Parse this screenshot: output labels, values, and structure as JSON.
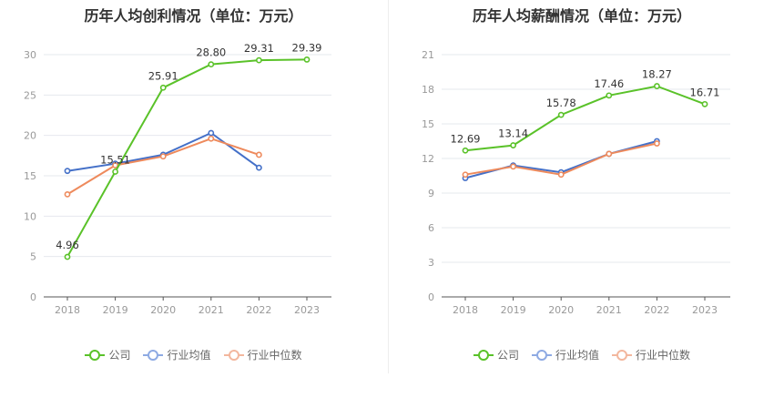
{
  "colors": {
    "company": "#5ac229",
    "industry_avg": "#4470c8",
    "industry_median": "#ee8a5c",
    "legend_industry_avg": "#8eaae3",
    "legend_industry_median": "#f3b79e",
    "grid": "#e6e8ee",
    "axis": "#555555"
  },
  "charts": [
    {
      "title": "历年人均创利情况（单位：万元）",
      "legend": [
        "公司",
        "行业均值",
        "行业中位数"
      ]
    },
    {
      "title": "历年人均薪酬情况（单位：万元）",
      "legend": [
        "公司",
        "行业均值",
        "行业中位数"
      ]
    }
  ],
  "chart_data": [
    {
      "type": "line",
      "title": "历年人均创利情况（单位：万元）",
      "categories": [
        "2018",
        "2019",
        "2020",
        "2021",
        "2022",
        "2023"
      ],
      "ylim": [
        0,
        30
      ],
      "yticks": [
        0,
        5,
        10,
        15,
        20,
        25,
        30
      ],
      "grid": true,
      "legend_position": "bottom",
      "series": [
        {
          "name": "公司",
          "values": [
            4.96,
            15.51,
            25.91,
            28.8,
            29.31,
            29.39
          ],
          "labels": [
            "4.96",
            "15.51",
            "25.91",
            "28.80",
            "29.31",
            "29.39"
          ]
        },
        {
          "name": "行业均值",
          "values": [
            15.6,
            16.5,
            17.6,
            20.3,
            16.0,
            null
          ]
        },
        {
          "name": "行业中位数",
          "values": [
            12.7,
            16.3,
            17.4,
            19.6,
            17.6,
            null
          ]
        }
      ]
    },
    {
      "type": "line",
      "title": "历年人均薪酬情况（单位：万元）",
      "categories": [
        "2018",
        "2019",
        "2020",
        "2021",
        "2022",
        "2023"
      ],
      "ylim": [
        0,
        21
      ],
      "yticks": [
        0,
        3,
        6,
        9,
        12,
        15,
        18,
        21
      ],
      "grid": true,
      "legend_position": "bottom",
      "series": [
        {
          "name": "公司",
          "values": [
            12.69,
            13.14,
            15.78,
            17.46,
            18.27,
            16.71
          ],
          "labels": [
            "12.69",
            "13.14",
            "15.78",
            "17.46",
            "18.27",
            "16.71"
          ]
        },
        {
          "name": "行业均值",
          "values": [
            10.3,
            11.4,
            10.8,
            12.4,
            13.5,
            null
          ]
        },
        {
          "name": "行业中位数",
          "values": [
            10.6,
            11.3,
            10.6,
            12.4,
            13.3,
            null
          ]
        }
      ]
    }
  ]
}
